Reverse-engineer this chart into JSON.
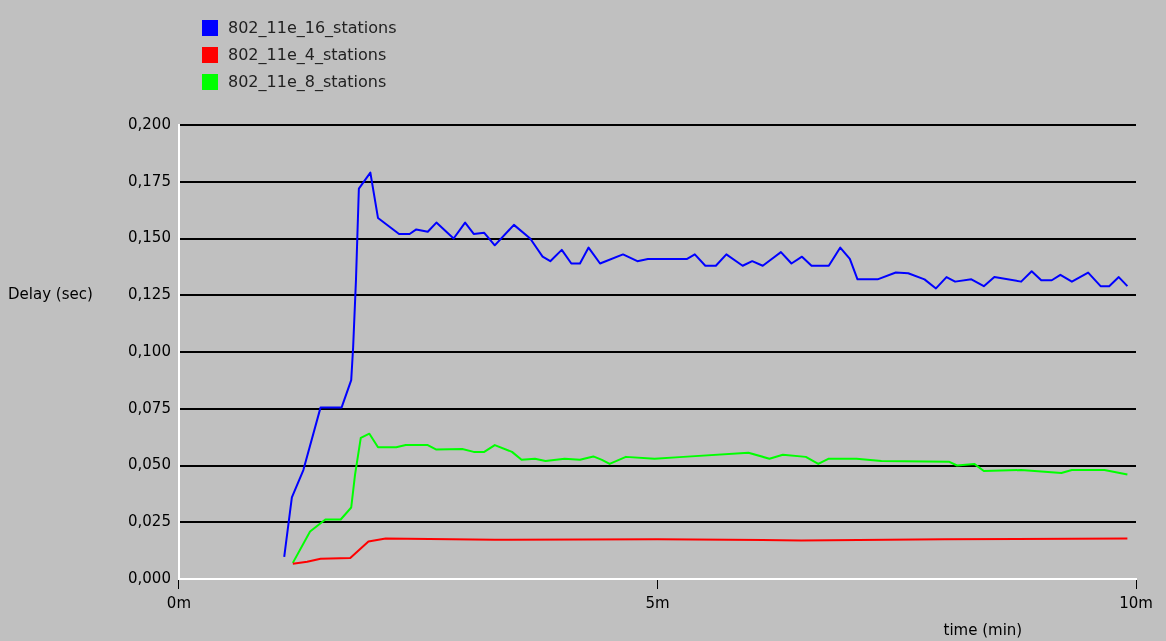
{
  "chart_data": {
    "type": "line",
    "xlabel": "time (min)",
    "ylabel": "Delay (sec)",
    "legend": "top left",
    "grid": "y",
    "marker": "none",
    "line_style": "solid",
    "xlim": [
      0,
      10
    ],
    "xticks": [
      {
        "value": 0,
        "label": "0m"
      },
      {
        "value": 5,
        "label": "5m"
      },
      {
        "value": 10,
        "label": "10m"
      }
    ],
    "ylim": [
      0,
      0.2
    ],
    "yticks": [
      {
        "value": 0,
        "label": "0,000"
      },
      {
        "value": 0.025,
        "label": "0,025"
      },
      {
        "value": 0.05,
        "label": "0,050"
      },
      {
        "value": 0.075,
        "label": "0,075"
      },
      {
        "value": 0.1,
        "label": "0,100"
      },
      {
        "value": 0.125,
        "label": "0,125"
      },
      {
        "value": 0.15,
        "label": "0,150"
      },
      {
        "value": 0.175,
        "label": "0,175"
      },
      {
        "value": 0.2,
        "label": "0,200"
      }
    ],
    "series": [
      {
        "name": "802_11e_16_stations",
        "color": "#0000ff",
        "x": [
          1.1,
          1.18,
          1.3,
          1.48,
          1.7,
          1.8,
          1.82,
          1.85,
          1.88,
          2.0,
          2.08,
          2.3,
          2.41,
          2.48,
          2.6,
          2.69,
          2.87,
          2.99,
          3.08,
          3.19,
          3.3,
          3.5,
          3.67,
          3.8,
          3.88,
          4.0,
          4.1,
          4.19,
          4.28,
          4.4,
          4.64,
          4.79,
          4.9,
          5.31,
          5.39,
          5.5,
          5.61,
          5.72,
          5.89,
          5.99,
          6.1,
          6.29,
          6.4,
          6.51,
          6.61,
          6.79,
          6.91,
          7.01,
          7.09,
          7.3,
          7.49,
          7.62,
          7.79,
          7.91,
          8.02,
          8.11,
          8.28,
          8.41,
          8.52,
          8.8,
          8.91,
          9.01,
          9.12,
          9.21,
          9.33,
          9.5,
          9.63,
          9.72,
          9.82,
          9.91
        ],
        "values": [
          0.0098,
          0.036,
          0.048,
          0.0756,
          0.0756,
          0.0876,
          0.102,
          0.132,
          0.172,
          0.179,
          0.159,
          0.152,
          0.152,
          0.154,
          0.153,
          0.157,
          0.15,
          0.157,
          0.152,
          0.1525,
          0.147,
          0.156,
          0.15,
          0.142,
          0.14,
          0.145,
          0.139,
          0.139,
          0.146,
          0.139,
          0.143,
          0.14,
          0.141,
          0.141,
          0.143,
          0.138,
          0.138,
          0.143,
          0.138,
          0.14,
          0.138,
          0.144,
          0.139,
          0.142,
          0.138,
          0.138,
          0.146,
          0.141,
          0.132,
          0.132,
          0.135,
          0.1347,
          0.132,
          0.128,
          0.133,
          0.131,
          0.132,
          0.129,
          0.133,
          0.131,
          0.1356,
          0.1316,
          0.1316,
          0.134,
          0.131,
          0.135,
          0.129,
          0.129,
          0.133,
          0.129
        ]
      },
      {
        "name": "802_11e_4_stations",
        "color": "#ff0000",
        "x": [
          1.19,
          1.34,
          1.48,
          1.79,
          1.98,
          2.16,
          3.3,
          5.0,
          6.5,
          8.0,
          9.91
        ],
        "values": [
          0.0067,
          0.0076,
          0.0089,
          0.0093,
          0.0165,
          0.0178,
          0.0173,
          0.0175,
          0.017,
          0.0175,
          0.0178
        ]
      },
      {
        "name": "802_11e_8_stations",
        "color": "#00ff00",
        "x": [
          1.19,
          1.37,
          1.53,
          1.69,
          1.8,
          1.84,
          1.9,
          1.99,
          2.08,
          2.27,
          2.37,
          2.6,
          2.69,
          2.96,
          3.08,
          3.19,
          3.3,
          3.48,
          3.58,
          3.72,
          3.83,
          4.03,
          4.19,
          4.33,
          4.42,
          4.5,
          4.67,
          4.97,
          5.27,
          5.95,
          6.17,
          6.31,
          6.55,
          6.68,
          6.79,
          7.08,
          7.34,
          8.05,
          8.13,
          8.31,
          8.41,
          8.8,
          9.22,
          9.33,
          9.67,
          9.91
        ],
        "values": [
          0.0071,
          0.0209,
          0.0262,
          0.0262,
          0.0315,
          0.046,
          0.0622,
          0.064,
          0.058,
          0.058,
          0.059,
          0.059,
          0.057,
          0.0573,
          0.056,
          0.056,
          0.059,
          0.056,
          0.0525,
          0.053,
          0.052,
          0.053,
          0.0525,
          0.054,
          0.0525,
          0.0507,
          0.0538,
          0.053,
          0.0538,
          0.0556,
          0.053,
          0.0547,
          0.0538,
          0.0507,
          0.053,
          0.053,
          0.052,
          0.0516,
          0.05,
          0.0507,
          0.0476,
          0.048,
          0.0467,
          0.048,
          0.048,
          0.046
        ]
      }
    ]
  }
}
